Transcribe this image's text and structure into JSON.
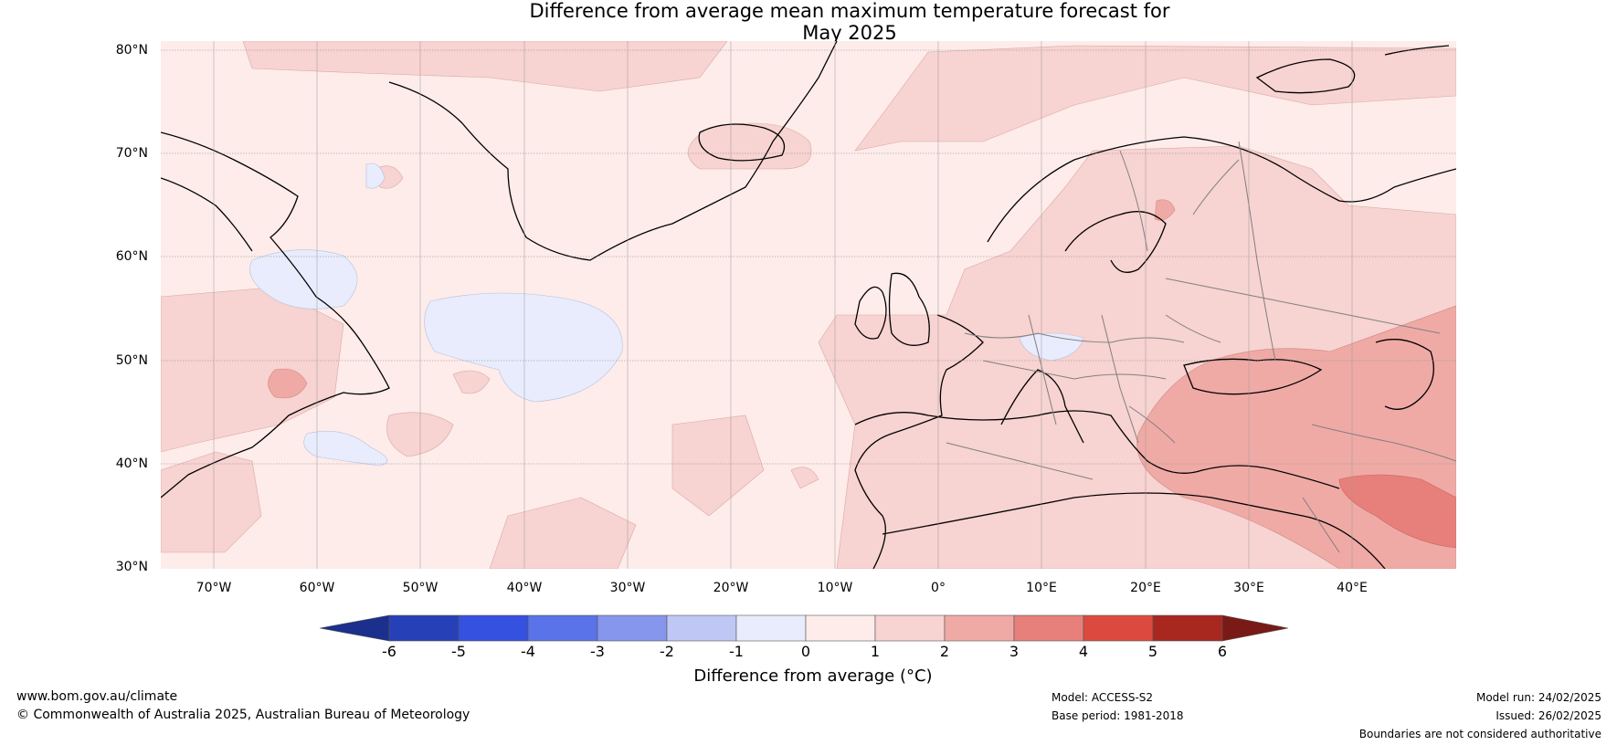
{
  "title_line1": "Difference from average mean maximum temperature forecast for",
  "title_line2": "May 2025",
  "lat_labels": [
    "80°N",
    "70°N",
    "60°N",
    "50°N",
    "40°N",
    "30°N"
  ],
  "lon_labels": [
    "70°W",
    "60°W",
    "50°W",
    "40°W",
    "30°W",
    "20°W",
    "10°W",
    "0°",
    "10°E",
    "20°E",
    "30°E",
    "40°E"
  ],
  "colorbar": {
    "label": "Difference from average (°C)",
    "ticks": [
      "-6",
      "-5",
      "-4",
      "-3",
      "-2",
      "-1",
      "0",
      "1",
      "2",
      "3",
      "4",
      "5",
      "6"
    ],
    "colors": [
      "#1b2f8c",
      "#2640b8",
      "#3451e0",
      "#5a73e8",
      "#8596ec",
      "#bfc7f4",
      "#e8ecfc",
      "#fdecea",
      "#f7d3d1",
      "#efaaa6",
      "#e7807a",
      "#dc4a3f",
      "#a8271f",
      "#7a1a16"
    ]
  },
  "footer": {
    "website": "www.bom.gov.au/climate",
    "copyright": "© Commonwealth of Australia 2025, Australian Bureau of Meteorology",
    "model": "Model: ACCESS-S2",
    "base_period": "Base period: 1981-2018",
    "model_run": "Model run: 24/02/2025",
    "issued": "Issued: 26/02/2025",
    "disclaimer": "Boundaries are not considered authoritative"
  }
}
